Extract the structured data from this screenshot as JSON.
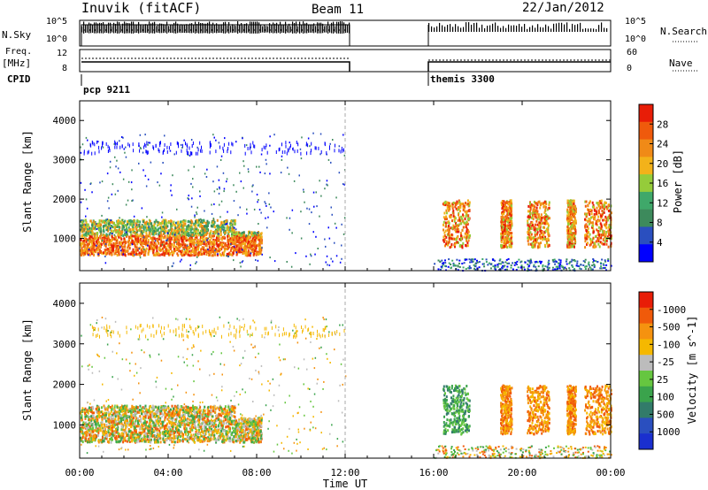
{
  "header": {
    "station": "Inuvik (fitACF)",
    "beam": "Beam 11",
    "date": "22/Jan/2012"
  },
  "strips": {
    "nsky": {
      "label": "N.Sky",
      "ticks": [
        "10^5",
        "10^0"
      ]
    },
    "nsearch": {
      "label": "N.Search",
      "ticks": [
        "10^5",
        "10^0"
      ]
    },
    "freq": {
      "label1": "Freq.",
      "label2": "[MHz]",
      "ticks": [
        "12",
        "8"
      ]
    },
    "nave": {
      "label": "Nave",
      "ticks": [
        "60",
        "0"
      ]
    },
    "cpid": {
      "label": "CPID",
      "modes": [
        "pcp 9211",
        "themis 3300"
      ]
    }
  },
  "colors": {
    "power": [
      "#0000ff",
      "#2a4fbf",
      "#3d8a5c",
      "#3fa86a",
      "#95cc3a",
      "#f3b21a",
      "#f08a17",
      "#ef5a0c",
      "#e81d07"
    ],
    "velocity": [
      "#e81d07",
      "#f05a0a",
      "#f5920f",
      "#f5b800",
      "#bcbcbc",
      "#66c640",
      "#3aa34c",
      "#327b6a",
      "#2a4fbf",
      "#1a2fcf"
    ]
  },
  "chart_data": [
    {
      "type": "heatmap",
      "title": "",
      "xlabel": "Time UT",
      "ylabel": "Slant Range [km]",
      "x_ticks": [
        "00:00",
        "04:00",
        "08:00",
        "12:00",
        "16:00",
        "20:00",
        "00:00"
      ],
      "xlim_hours": [
        0,
        24
      ],
      "y_ticks": [
        "1000",
        "2000",
        "3000",
        "4000"
      ],
      "ylim": [
        180,
        4500
      ],
      "colorbar": {
        "label": "Power [dB]",
        "ticks": [
          "4",
          "8",
          "12",
          "16",
          "20",
          "24",
          "28"
        ],
        "range": [
          0,
          30
        ]
      }
    },
    {
      "type": "heatmap",
      "title": "",
      "xlabel": "Time UT",
      "ylabel": "Slant Range [km]",
      "x_ticks": [
        "00:00",
        "04:00",
        "08:00",
        "12:00",
        "16:00",
        "20:00",
        "00:00"
      ],
      "xlim_hours": [
        0,
        24
      ],
      "y_ticks": [
        "1000",
        "2000",
        "3000",
        "4000"
      ],
      "ylim": [
        180,
        4500
      ],
      "colorbar": {
        "label": "Velocity [m s^-1]",
        "ticks": [
          "1000",
          "500",
          "100",
          "25",
          "-25",
          "-100",
          "-500",
          "-1000"
        ]
      }
    }
  ],
  "axis": {
    "xlabel": "Time UT"
  }
}
